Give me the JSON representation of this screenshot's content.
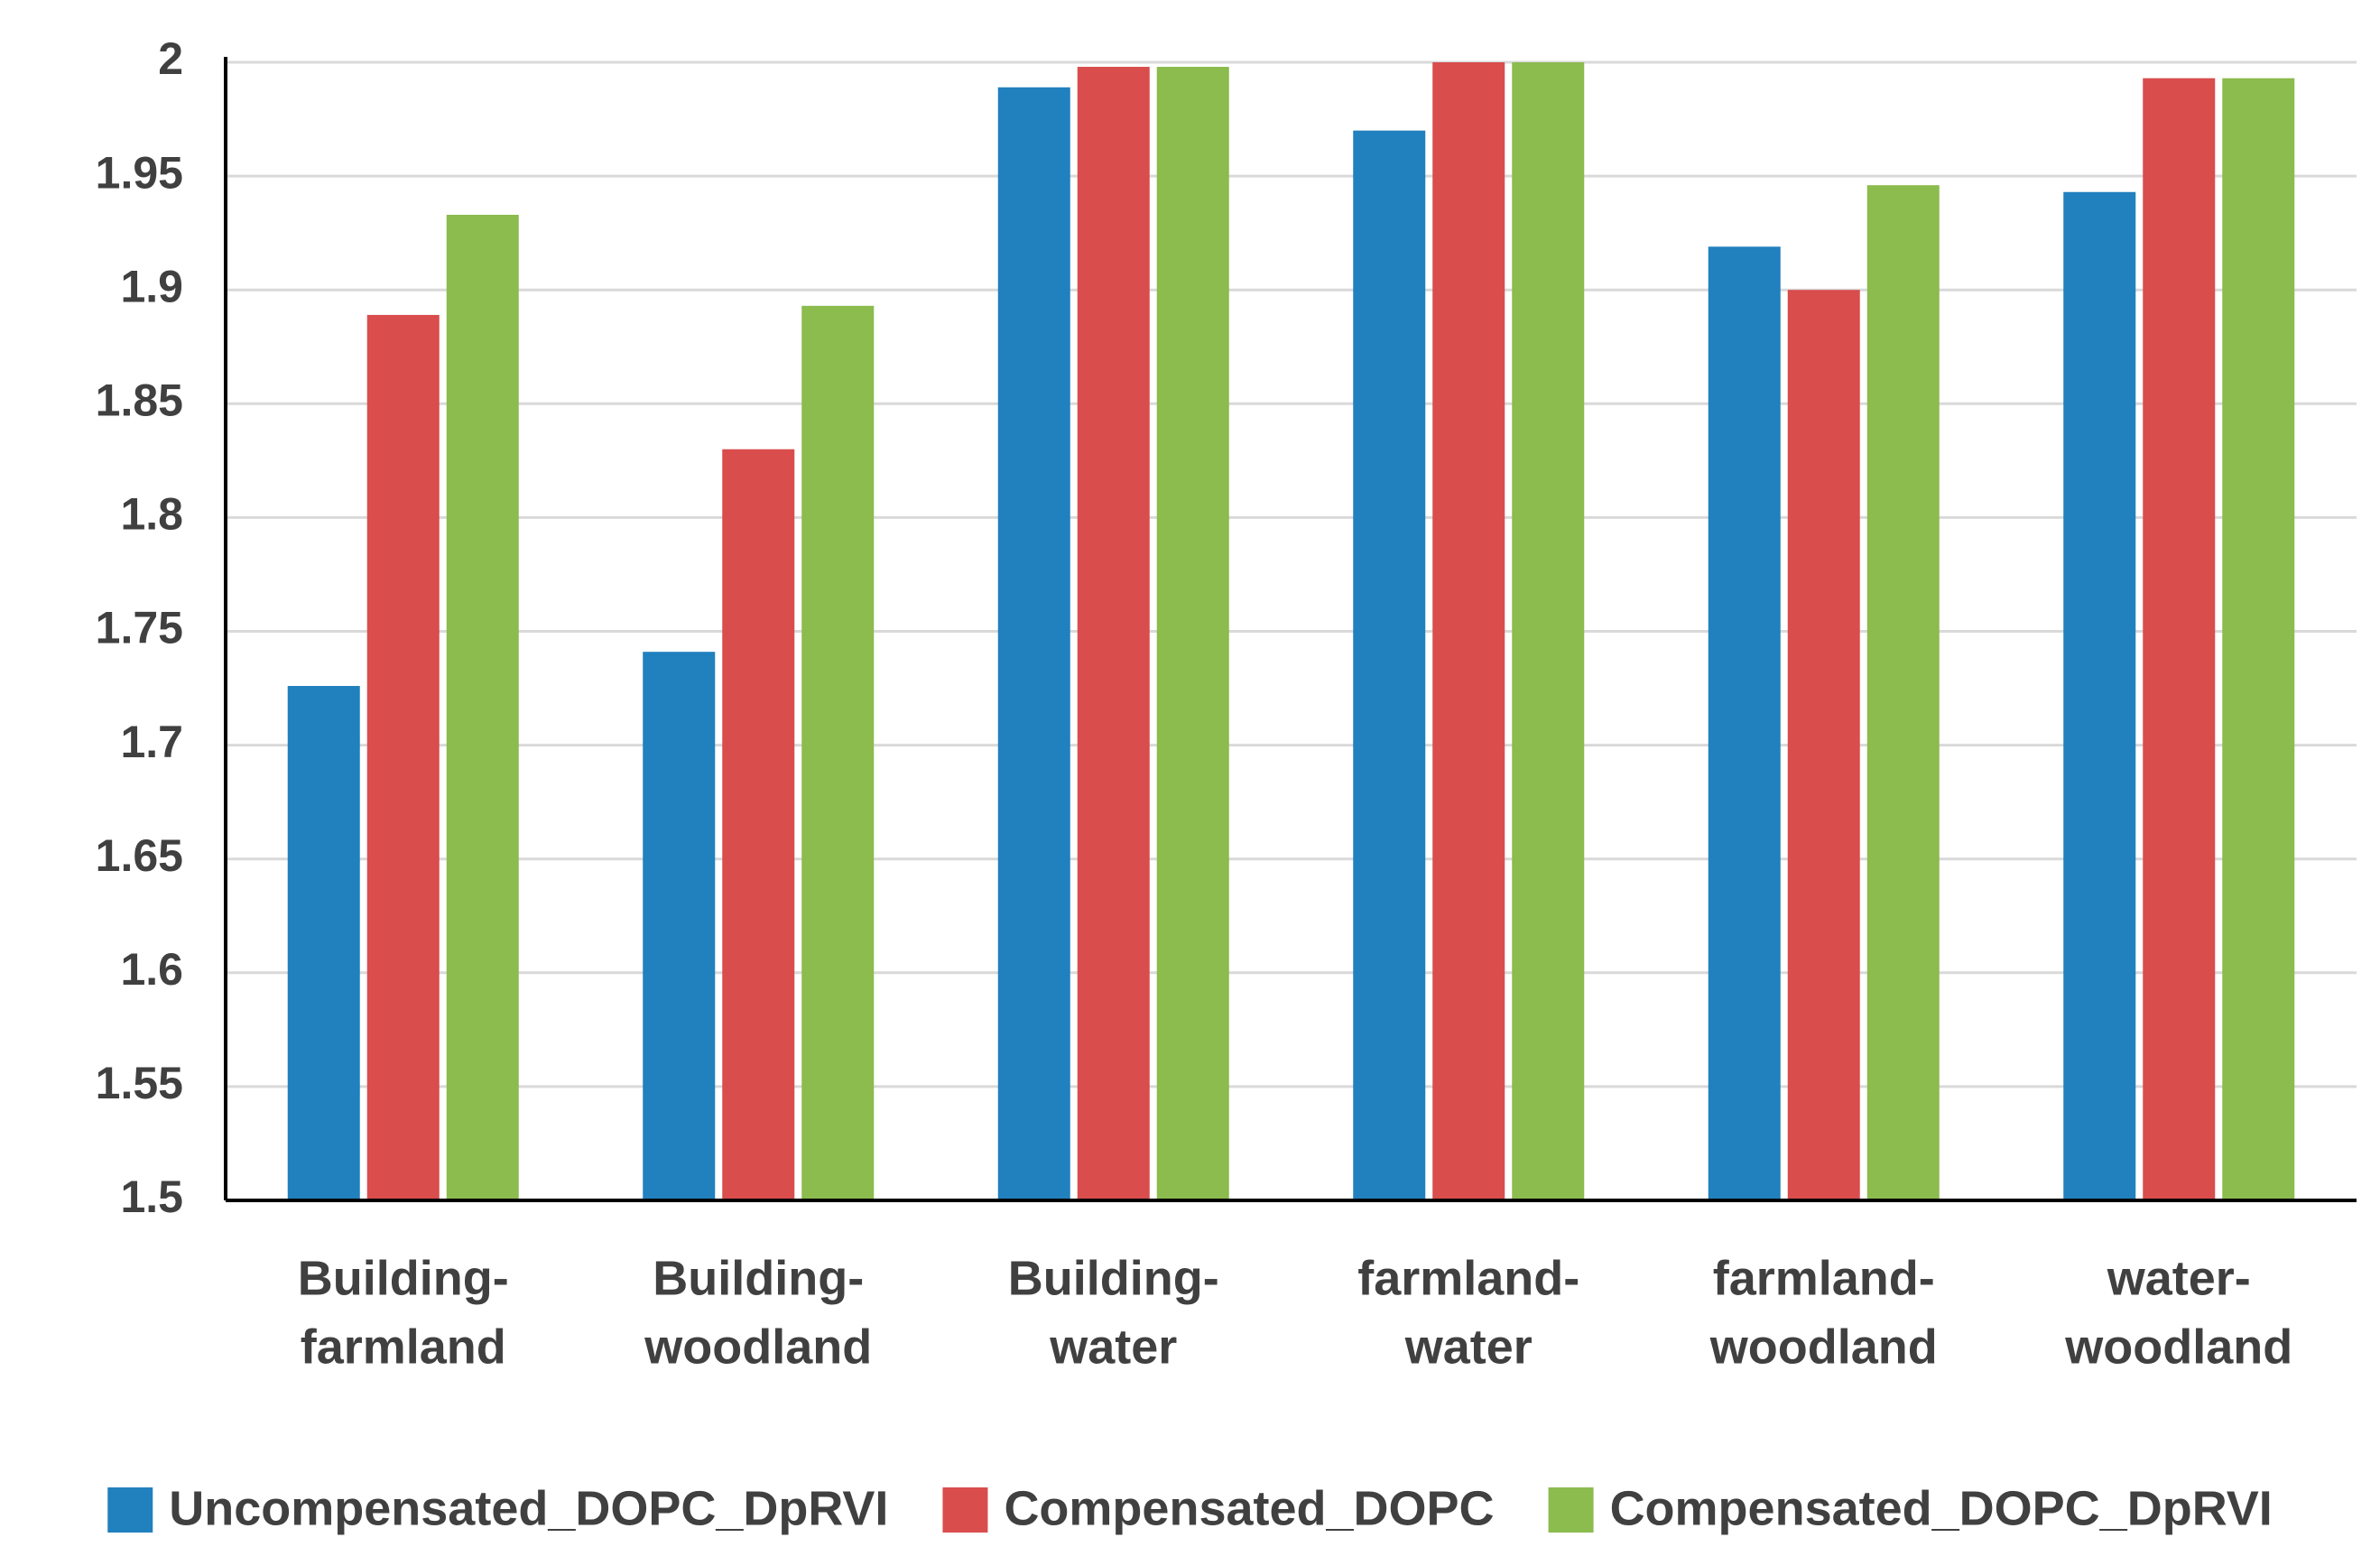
{
  "chart_data": {
    "type": "bar",
    "categories": [
      [
        "Building-",
        "farmland"
      ],
      [
        "Building-",
        "woodland"
      ],
      [
        "Building-",
        "water"
      ],
      [
        "farmland-",
        "water"
      ],
      [
        "farmland-",
        "woodland"
      ],
      [
        "water-",
        "woodland"
      ]
    ],
    "series": [
      {
        "name": "Uncompensated_DOPC_DpRVI",
        "color": "#2180be",
        "values": [
          1.726,
          1.741,
          1.989,
          1.97,
          1.919,
          1.943
        ]
      },
      {
        "name": "Compensated_DOPC",
        "color": "#d94d4d",
        "values": [
          1.889,
          1.83,
          1.998,
          2.0,
          1.9,
          1.993
        ]
      },
      {
        "name": "Compensated_DOPC_DpRVI",
        "color": "#8cbb4e",
        "values": [
          1.933,
          1.893,
          1.998,
          2.0,
          1.946,
          1.993
        ]
      }
    ],
    "ylim": [
      1.5,
      2
    ],
    "yticks": [
      1.5,
      1.55,
      1.6,
      1.65,
      1.7,
      1.75,
      1.8,
      1.85,
      1.9,
      1.95,
      2
    ],
    "grid": true,
    "legend": "bottom"
  }
}
